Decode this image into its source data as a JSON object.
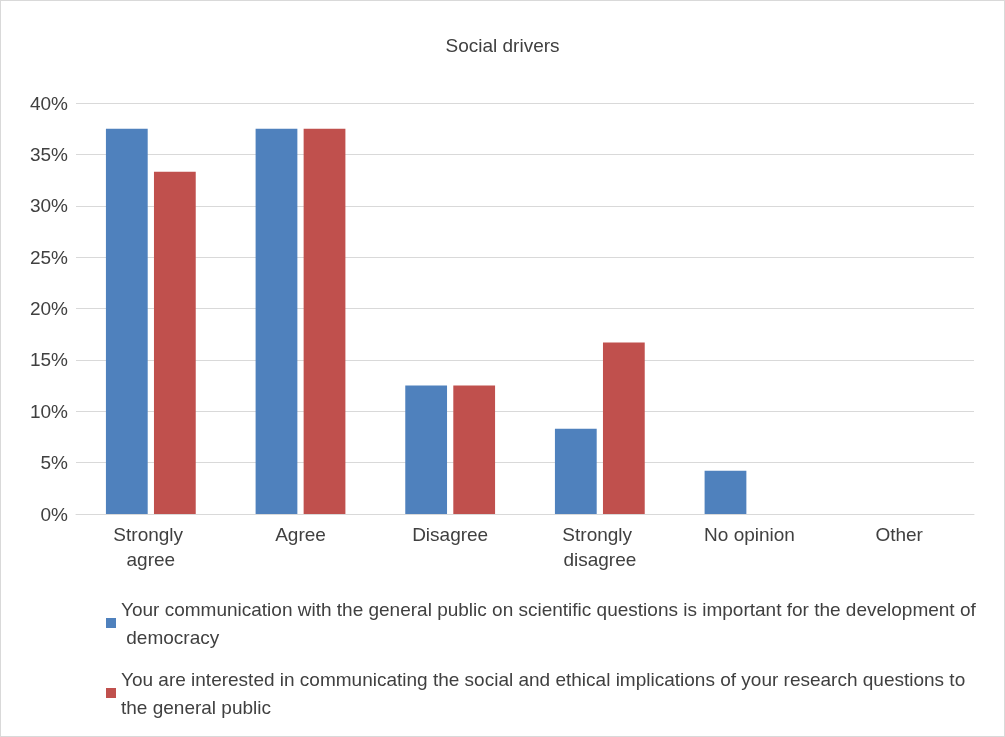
{
  "chart_data": {
    "type": "bar",
    "title": "Social drivers",
    "categories": [
      "Strongly agree",
      "Agree",
      "Disagree",
      "Strongly disagree",
      "No opinion",
      "Other"
    ],
    "series": [
      {
        "name": "Your communication with the general public on scientific questions is important for the development of democracy",
        "color": "#4f81bd",
        "values": [
          37.5,
          37.5,
          12.5,
          8.3,
          4.2,
          0
        ]
      },
      {
        "name": "You are interested in communicating the social and ethical implications of your research questions to the general public",
        "color": "#c0504d",
        "values": [
          33.3,
          37.5,
          12.5,
          16.7,
          0,
          0
        ]
      }
    ],
    "ylim": [
      0,
      40
    ],
    "yticks": [
      {
        "value": 0,
        "label": "0%"
      },
      {
        "value": 5,
        "label": "5%"
      },
      {
        "value": 10,
        "label": "10%"
      },
      {
        "value": 15,
        "label": "15%"
      },
      {
        "value": 20,
        "label": "20%"
      },
      {
        "value": 25,
        "label": "25%"
      },
      {
        "value": 30,
        "label": "30%"
      },
      {
        "value": 35,
        "label": "35%"
      },
      {
        "value": 40,
        "label": "40%"
      }
    ],
    "grid": "y",
    "legend": "bottom"
  }
}
